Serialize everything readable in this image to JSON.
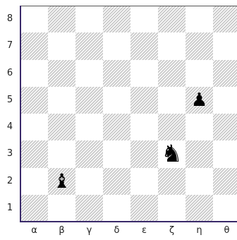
{
  "board": {
    "files": [
      "α",
      "β",
      "γ",
      "δ",
      "ε",
      "ζ",
      "η",
      "θ"
    ],
    "ranks": [
      "8",
      "7",
      "6",
      "5",
      "4",
      "3",
      "2",
      "1"
    ],
    "pieces": [
      {
        "name": "black-pawn",
        "symbol": "♟",
        "file_index": 6,
        "rank_index": 3
      },
      {
        "name": "black-knight",
        "symbol": "♞",
        "file_index": 5,
        "rank_index": 5
      },
      {
        "name": "black-bishop",
        "symbol": "♝",
        "file_index": 1,
        "rank_index": 6
      }
    ],
    "colors": {
      "light": "#ffffff",
      "dark": "#f4f4f4",
      "piece": "#000000",
      "edge": "#3a2a6a"
    }
  }
}
